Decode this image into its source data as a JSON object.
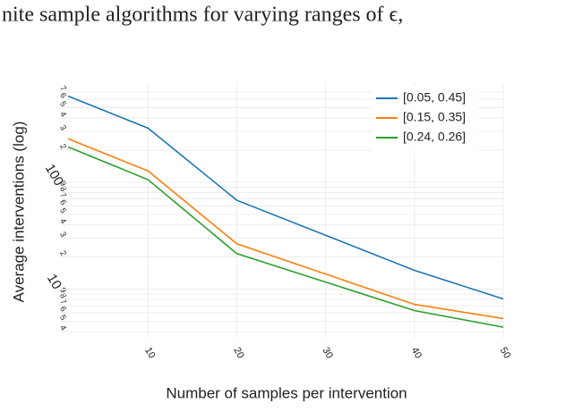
{
  "caption": "nite sample algorithms for varying ranges of ϵ,",
  "chart_data": {
    "type": "line",
    "x_label": "Number of samples per intervention",
    "y_label": "Average interventions (log)",
    "x": [
      1,
      10,
      20,
      40,
      50
    ],
    "series": [
      {
        "name": "[0.05, 0.45]",
        "color": "#1f77b4",
        "values": [
          643,
          322,
          68,
          15,
          8.1
        ]
      },
      {
        "name": "[0.15, 0.35]",
        "color": "#ff7f0e",
        "values": [
          256,
          128,
          26.6,
          7.2,
          5.3
        ]
      },
      {
        "name": "[0.24, 0.26]",
        "color": "#2ca02c",
        "values": [
          215,
          106,
          21.5,
          6.3,
          4.4
        ]
      }
    ],
    "xlim": [
      1,
      50
    ],
    "xticks": [
      10,
      20,
      30,
      40,
      50
    ],
    "ylim": [
      3.5,
      850
    ],
    "ylog": true,
    "yticks": [
      {
        "value": 4,
        "label": "4"
      },
      {
        "value": 5,
        "label": "5"
      },
      {
        "value": 6,
        "label": "6"
      },
      {
        "value": 7,
        "label": "7"
      },
      {
        "value": 8,
        "label": "8"
      },
      {
        "value": 9,
        "label": "9"
      },
      10,
      {
        "value": 20,
        "label": "2"
      },
      {
        "value": 30,
        "label": "3"
      },
      {
        "value": 40,
        "label": "4"
      },
      {
        "value": 50,
        "label": "5"
      },
      {
        "value": 60,
        "label": "6"
      },
      {
        "value": 70,
        "label": "7"
      },
      {
        "value": 80,
        "label": "8"
      },
      {
        "value": 90,
        "label": "9"
      },
      100,
      {
        "value": 200,
        "label": "2"
      },
      {
        "value": 300,
        "label": "3"
      },
      {
        "value": 400,
        "label": "4"
      },
      {
        "value": 500,
        "label": "5"
      },
      {
        "value": 600,
        "label": "6"
      },
      {
        "value": 700,
        "label": "7"
      }
    ],
    "grid": true,
    "legend": "top-right"
  }
}
